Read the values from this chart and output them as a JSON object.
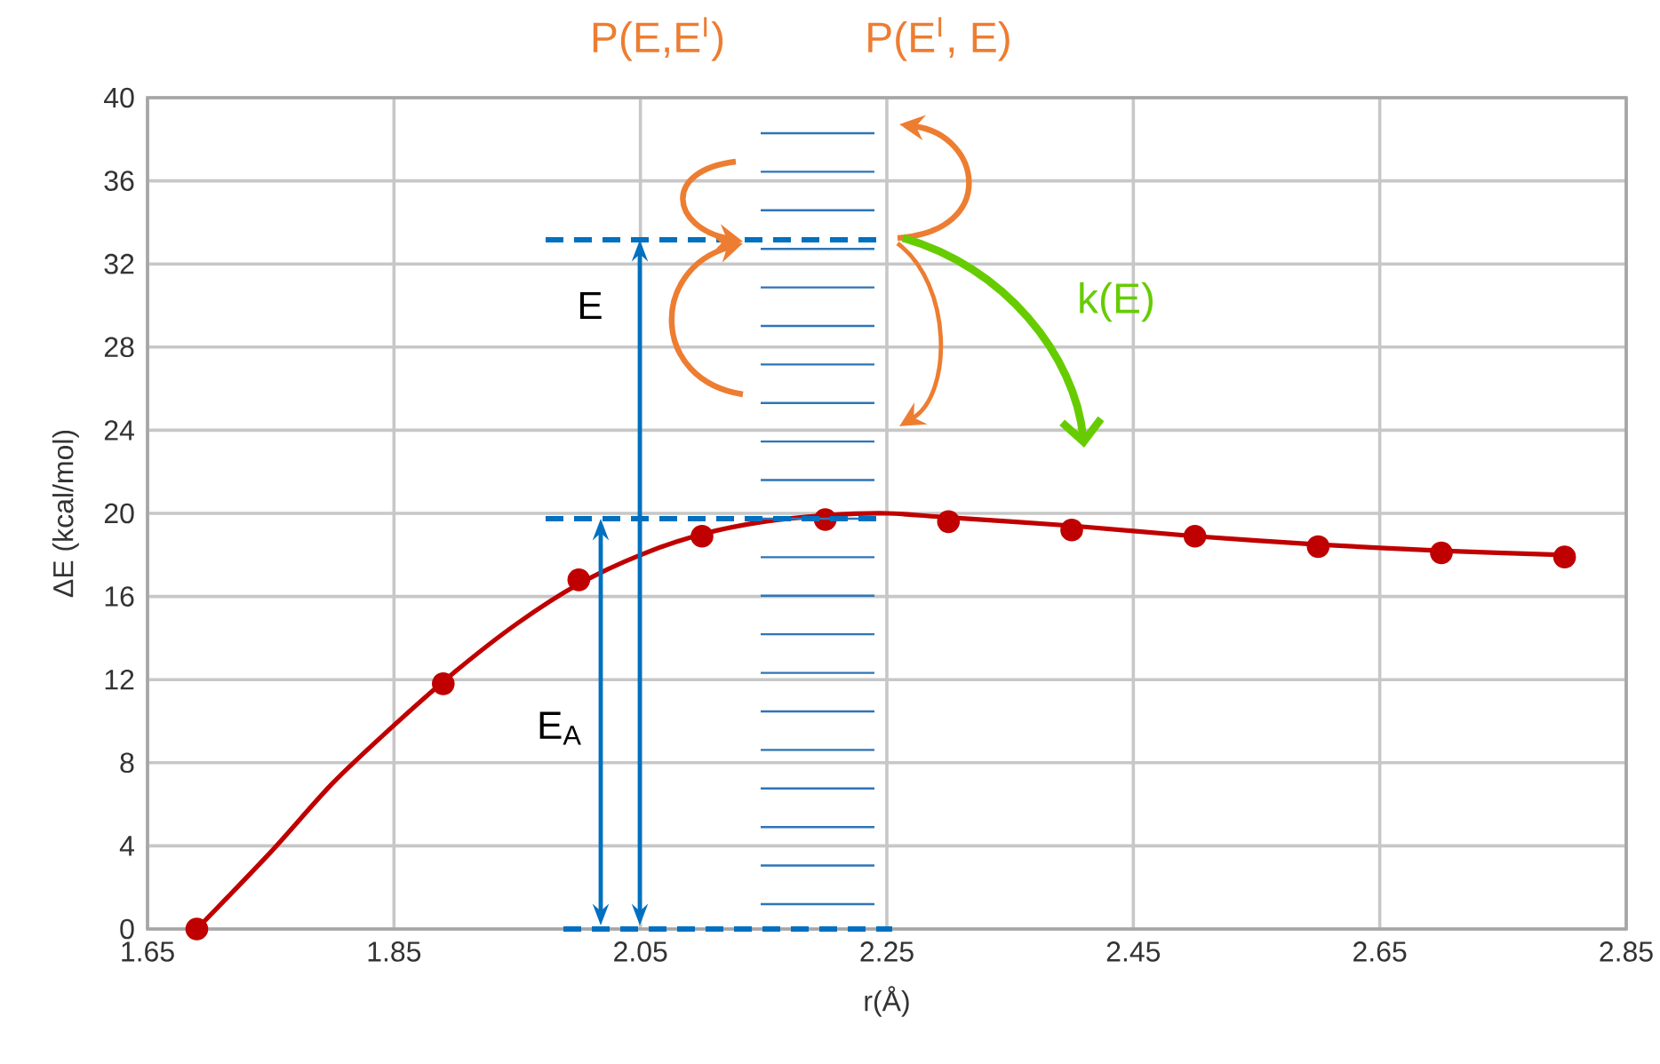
{
  "chart_data": {
    "type": "scatter",
    "xlabel": "r(Å)",
    "ylabel": "ΔE (kcal/mol)",
    "annotations": [
      "P(E,E$^{I}$)",
      "P(E$^{I}$, E)",
      "k(E)",
      "E",
      "E$_{A}$"
    ],
    "series": [
      {
        "type": "line",
        "marker": "none",
        "color": "#c00000",
        "x": [
          1.69,
          1.75,
          1.8,
          1.85,
          1.9,
          1.95,
          2.0,
          2.05,
          2.1,
          2.15,
          2.2,
          2.25,
          2.3,
          2.4,
          2.5,
          2.6,
          2.7,
          2.8
        ],
        "values": [
          0,
          3.7,
          7.0,
          9.8,
          12.4,
          14.7,
          16.6,
          18.0,
          19.0,
          19.6,
          19.9,
          20.0,
          19.8,
          19.4,
          18.9,
          18.5,
          18.2,
          18.0
        ]
      },
      {
        "marker": "circle",
        "color": "#c00000",
        "x": [
          1.69,
          1.89,
          2.0,
          2.1,
          2.2,
          2.3,
          2.4,
          2.5,
          2.6,
          2.7,
          2.8
        ],
        "values": [
          0,
          11.8,
          16.8,
          18.9,
          19.7,
          19.6,
          19.2,
          18.9,
          18.4,
          18.1,
          17.9
        ]
      }
    ],
    "xlim": [
      1.65,
      2.85
    ],
    "ylim": [
      0,
      40
    ],
    "xticks": [
      1.65,
      1.85,
      2.05,
      2.25,
      2.45,
      2.65,
      2.85
    ],
    "yticks": [
      0,
      4,
      8,
      12,
      16,
      20,
      24,
      28,
      32,
      36,
      40
    ],
    "grid": true
  }
}
